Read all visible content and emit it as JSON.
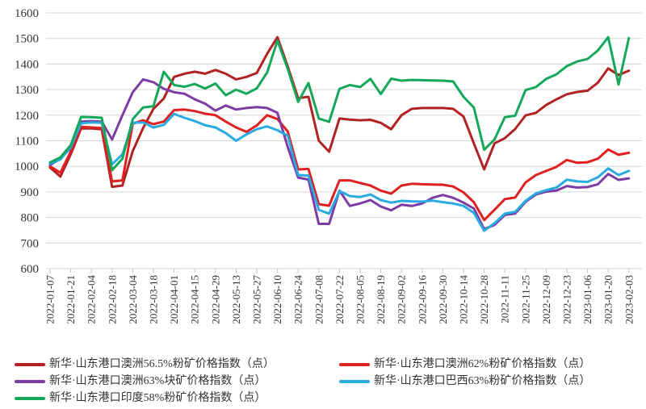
{
  "chart_data": {
    "type": "line",
    "title": "",
    "xlabel": "",
    "ylabel": "",
    "ylim": [
      600,
      1600
    ],
    "y_step": 100,
    "grid": true,
    "x_label_every": 2,
    "legend_position": "bottom",
    "x": [
      "2022-01-07",
      "2022-01-14",
      "2022-01-21",
      "2022-01-28",
      "2022-02-04",
      "2022-02-11",
      "2022-02-18",
      "2022-02-25",
      "2022-03-04",
      "2022-03-11",
      "2022-03-18",
      "2022-03-25",
      "2022-04-01",
      "2022-04-08",
      "2022-04-15",
      "2022-04-22",
      "2022-04-29",
      "2022-05-06",
      "2022-05-13",
      "2022-05-20",
      "2022-05-27",
      "2022-06-03",
      "2022-06-10",
      "2022-06-17",
      "2022-06-24",
      "2022-07-01",
      "2022-07-08",
      "2022-07-15",
      "2022-07-22",
      "2022-07-29",
      "2022-08-05",
      "2022-08-12",
      "2022-08-19",
      "2022-08-26",
      "2022-09-02",
      "2022-09-09",
      "2022-09-16",
      "2022-09-23",
      "2022-09-30",
      "2022-10-07",
      "2022-10-14",
      "2022-10-21",
      "2022-10-28",
      "2022-11-04",
      "2022-11-11",
      "2022-11-18",
      "2022-11-25",
      "2022-12-02",
      "2022-12-09",
      "2022-12-16",
      "2022-12-23",
      "2022-12-30",
      "2023-01-06",
      "2023-01-13",
      "2023-01-20",
      "2023-01-27",
      "2023-02-03"
    ],
    "series": [
      {
        "name": "新华·山东港口澳洲56.5%粉矿价格指数（点）",
        "slug": "au-56-5-fines-index",
        "color": "#B22222",
        "values": [
          995,
          960,
          1047,
          1148,
          1148,
          1145,
          920,
          925,
          1060,
          1150,
          1225,
          1265,
          1350,
          1362,
          1370,
          1362,
          1377,
          1362,
          1340,
          1350,
          1365,
          1440,
          1505,
          1390,
          1267,
          1272,
          1100,
          1057,
          1187,
          1183,
          1180,
          1182,
          1170,
          1145,
          1200,
          1225,
          1228,
          1228,
          1228,
          1225,
          1195,
          1090,
          988,
          1090,
          1110,
          1146,
          1199,
          1209,
          1240,
          1262,
          1282,
          1291,
          1296,
          1327,
          1383,
          1357,
          1374
        ]
      },
      {
        "name": "新华·山东港口澳洲62%粉矿价格指数（点）",
        "slug": "au-62-fines-index",
        "color": "#E02020",
        "values": [
          1000,
          975,
          1058,
          1155,
          1152,
          1150,
          941,
          945,
          1167,
          1180,
          1165,
          1175,
          1220,
          1222,
          1216,
          1206,
          1200,
          1175,
          1152,
          1135,
          1160,
          1200,
          1185,
          1136,
          988,
          990,
          852,
          846,
          945,
          945,
          935,
          925,
          905,
          893,
          925,
          932,
          930,
          929,
          928,
          921,
          898,
          860,
          790,
          830,
          872,
          878,
          937,
          966,
          982,
          998,
          1025,
          1014,
          1016,
          1030,
          1066,
          1045,
          1053
        ]
      },
      {
        "name": "新华·山东港口澳洲63%块矿价格指数（点）",
        "slug": "au-63-lump-index",
        "color": "#7D3CA3",
        "values": [
          1005,
          1030,
          1072,
          1175,
          1177,
          1175,
          1105,
          1200,
          1290,
          1340,
          1329,
          1303,
          1290,
          1284,
          1262,
          1245,
          1218,
          1238,
          1222,
          1228,
          1232,
          1228,
          1209,
          1075,
          956,
          948,
          775,
          775,
          905,
          845,
          855,
          868,
          843,
          828,
          850,
          845,
          855,
          877,
          888,
          877,
          858,
          835,
          755,
          771,
          810,
          815,
          861,
          890,
          901,
          905,
          923,
          917,
          919,
          930,
          970,
          947,
          953
        ]
      },
      {
        "name": "新华·山东港口巴西63%粉矿价格指数（点）",
        "slug": "br-63-fines-index",
        "color": "#29ABE2",
        "values": [
          1010,
          1027,
          1075,
          1168,
          1172,
          1170,
          1008,
          1047,
          1170,
          1172,
          1152,
          1162,
          1205,
          1190,
          1177,
          1161,
          1152,
          1130,
          1100,
          1125,
          1145,
          1156,
          1141,
          1120,
          966,
          964,
          830,
          815,
          903,
          884,
          880,
          890,
          868,
          858,
          865,
          863,
          862,
          866,
          860,
          855,
          845,
          818,
          748,
          778,
          815,
          822,
          865,
          894,
          907,
          917,
          948,
          941,
          939,
          957,
          992,
          966,
          982
        ]
      },
      {
        "name": "新华·山东港口印度58%粉矿价格指数（点）",
        "slug": "in-58-fines-index",
        "color": "#15A85A",
        "values": [
          1015,
          1035,
          1083,
          1193,
          1192,
          1190,
          985,
          1030,
          1185,
          1230,
          1235,
          1370,
          1318,
          1311,
          1322,
          1304,
          1324,
          1278,
          1300,
          1284,
          1305,
          1367,
          1492,
          1380,
          1252,
          1326,
          1187,
          1174,
          1303,
          1318,
          1310,
          1342,
          1283,
          1343,
          1335,
          1338,
          1337,
          1336,
          1335,
          1332,
          1272,
          1230,
          1065,
          1105,
          1192,
          1198,
          1298,
          1310,
          1342,
          1360,
          1392,
          1410,
          1420,
          1453,
          1505,
          1320,
          1502
        ]
      }
    ],
    "legend": {
      "columns_x": [
        18,
        420
      ],
      "rows_y": [
        443,
        464,
        485
      ],
      "items": [
        {
          "series": 0,
          "col": 0,
          "row": 0
        },
        {
          "series": 1,
          "col": 1,
          "row": 0
        },
        {
          "series": 2,
          "col": 0,
          "row": 1
        },
        {
          "series": 3,
          "col": 1,
          "row": 1
        },
        {
          "series": 4,
          "col": 0,
          "row": 2
        }
      ]
    }
  },
  "style": {
    "gridline_color": "#D6D6D6",
    "axis_tick_color": "#BFBFBF",
    "text_color": "#333333",
    "background": "#FFFFFF"
  }
}
